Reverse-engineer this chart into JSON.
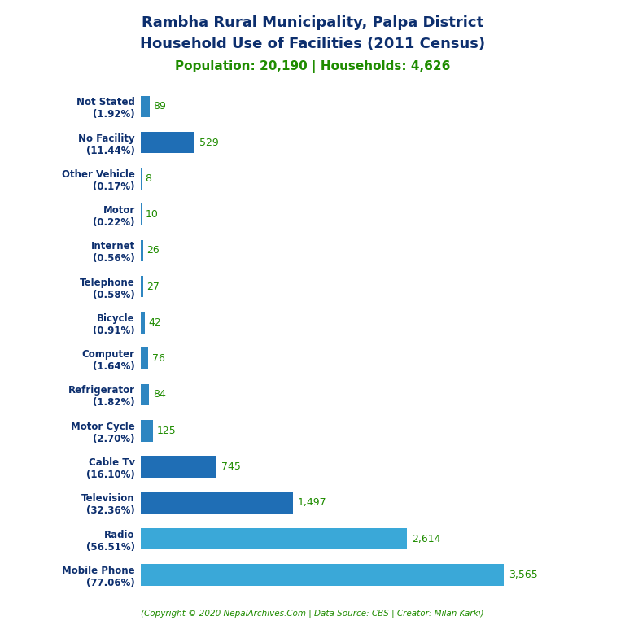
{
  "title_line1": "Rambha Rural Municipality, Palpa District",
  "title_line2": "Household Use of Facilities (2011 Census)",
  "subtitle": "Population: 20,190 | Households: 4,626",
  "copyright": "(Copyright © 2020 NepalArchives.Com | Data Source: CBS | Creator: Milan Karki)",
  "categories": [
    "Not Stated\n(1.92%)",
    "No Facility\n(11.44%)",
    "Other Vehicle\n(0.17%)",
    "Motor\n(0.22%)",
    "Internet\n(0.56%)",
    "Telephone\n(0.58%)",
    "Bicycle\n(0.91%)",
    "Computer\n(1.64%)",
    "Refrigerator\n(1.82%)",
    "Motor Cycle\n(2.70%)",
    "Cable Tv\n(16.10%)",
    "Television\n(32.36%)",
    "Radio\n(56.51%)",
    "Mobile Phone\n(77.06%)"
  ],
  "values": [
    89,
    529,
    8,
    10,
    26,
    27,
    42,
    76,
    84,
    125,
    745,
    1497,
    2614,
    3565
  ],
  "value_labels": [
    "89",
    "529",
    "8",
    "10",
    "26",
    "27",
    "42",
    "76",
    "84",
    "125",
    "745",
    "1,497",
    "2,614",
    "3,565"
  ],
  "bar_colors": [
    "#2e86c1",
    "#1f6eb5",
    "#2e86c1",
    "#2e86c1",
    "#2e86c1",
    "#2e86c1",
    "#2e86c1",
    "#2e86c1",
    "#2e86c1",
    "#2e86c1",
    "#1f6eb5",
    "#1f6eb5",
    "#3aa8d8",
    "#3aa8d8"
  ],
  "title_color": "#0d2f6e",
  "subtitle_color": "#1f8c00",
  "value_label_color": "#1f8c00",
  "ylabel_color": "#0d2f6e",
  "copyright_color": "#1f8c00",
  "background_color": "#ffffff",
  "xlim": [
    0,
    4200
  ],
  "figsize": [
    7.68,
    7.68
  ],
  "dpi": 100
}
